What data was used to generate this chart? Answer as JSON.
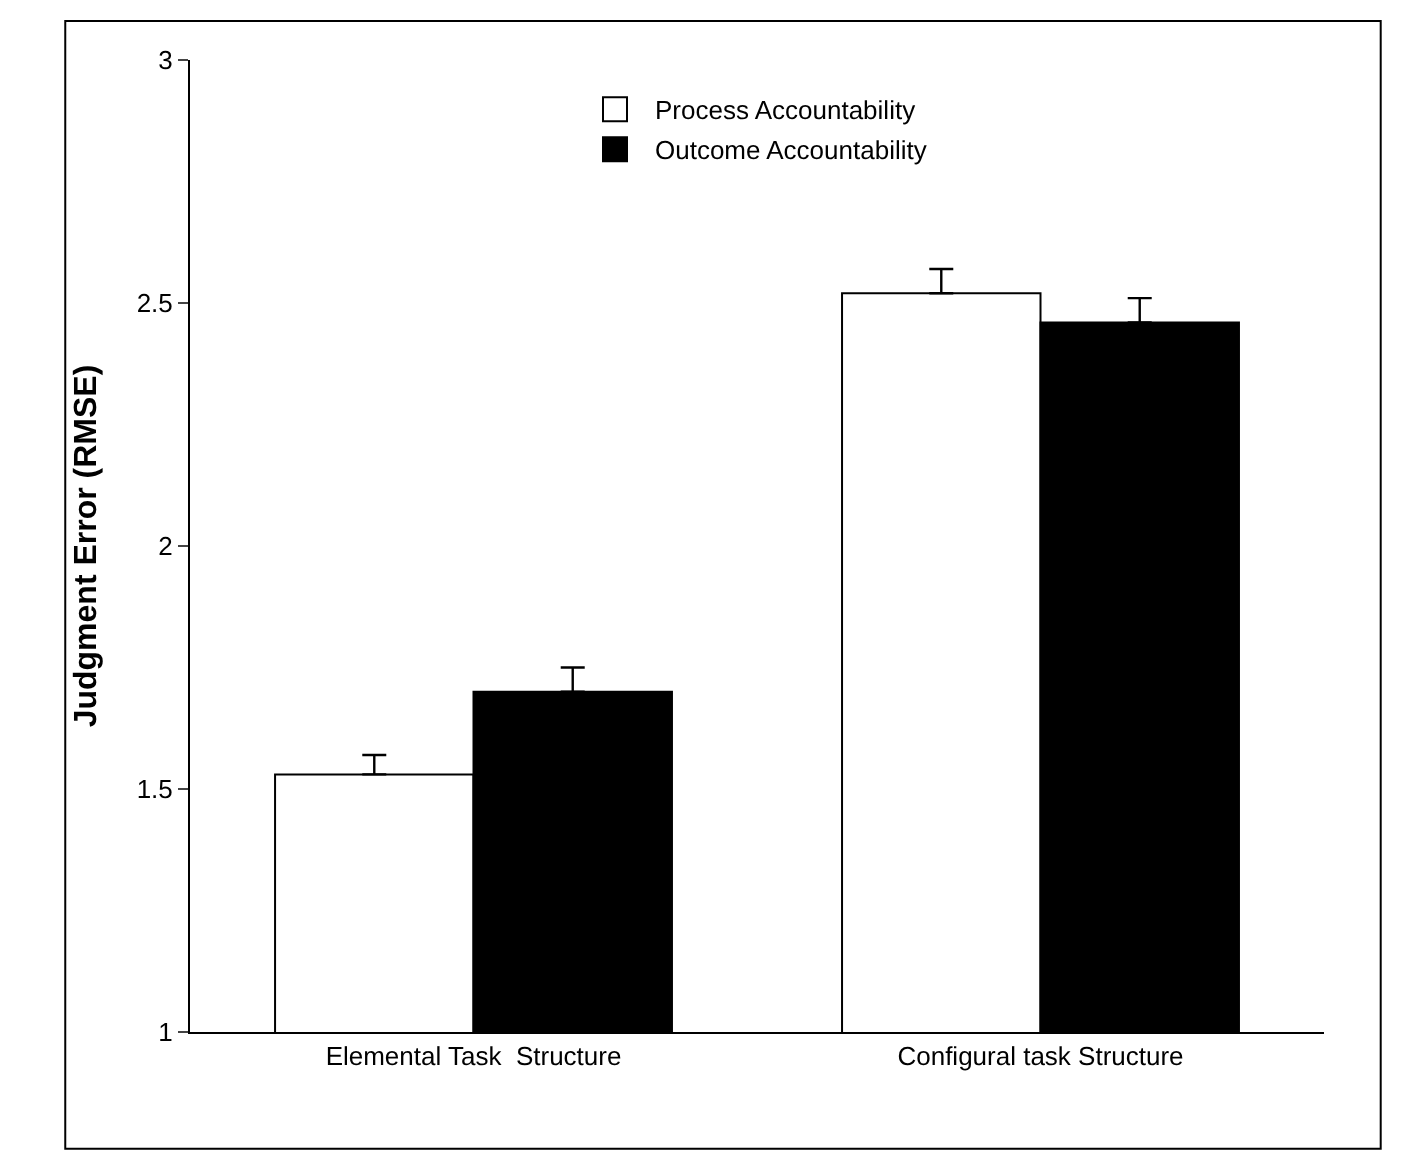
{
  "chart_data": {
    "type": "bar",
    "ylabel": "Judgment Error (RMSE)",
    "categories": [
      "Elemental Task  Structure",
      "Configural task Structure"
    ],
    "series": [
      {
        "name": "Process Accountability",
        "color": "#ffffff",
        "values": [
          1.53,
          2.52
        ],
        "errors": [
          [
            1.53,
            1.57
          ],
          [
            2.52,
            2.57
          ]
        ]
      },
      {
        "name": "Outcome Accountability",
        "color": "#000000",
        "values": [
          1.7,
          2.46
        ],
        "errors": [
          [
            1.7,
            1.75
          ],
          [
            2.46,
            2.51
          ]
        ]
      }
    ],
    "ylim": [
      1,
      3
    ],
    "yticks": [
      1,
      1.5,
      2,
      2.5,
      3
    ],
    "legend": "top"
  }
}
